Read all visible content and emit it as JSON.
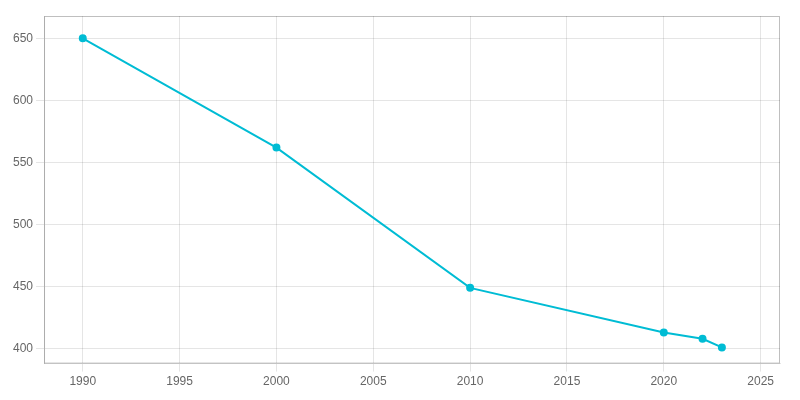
{
  "chart_data": {
    "type": "line",
    "x": [
      1990,
      2000,
      2010,
      2020,
      2022,
      2023
    ],
    "values": [
      650,
      562,
      449,
      413,
      408,
      401
    ],
    "color": "#00BCD4",
    "marker": "o",
    "xlim": [
      1988,
      2026
    ],
    "ylim": [
      388,
      668
    ],
    "xticks": [
      1990,
      1995,
      2000,
      2005,
      2010,
      2015,
      2020,
      2025
    ],
    "yticks": [
      400,
      450,
      500,
      550,
      600,
      650
    ],
    "grid": true
  }
}
